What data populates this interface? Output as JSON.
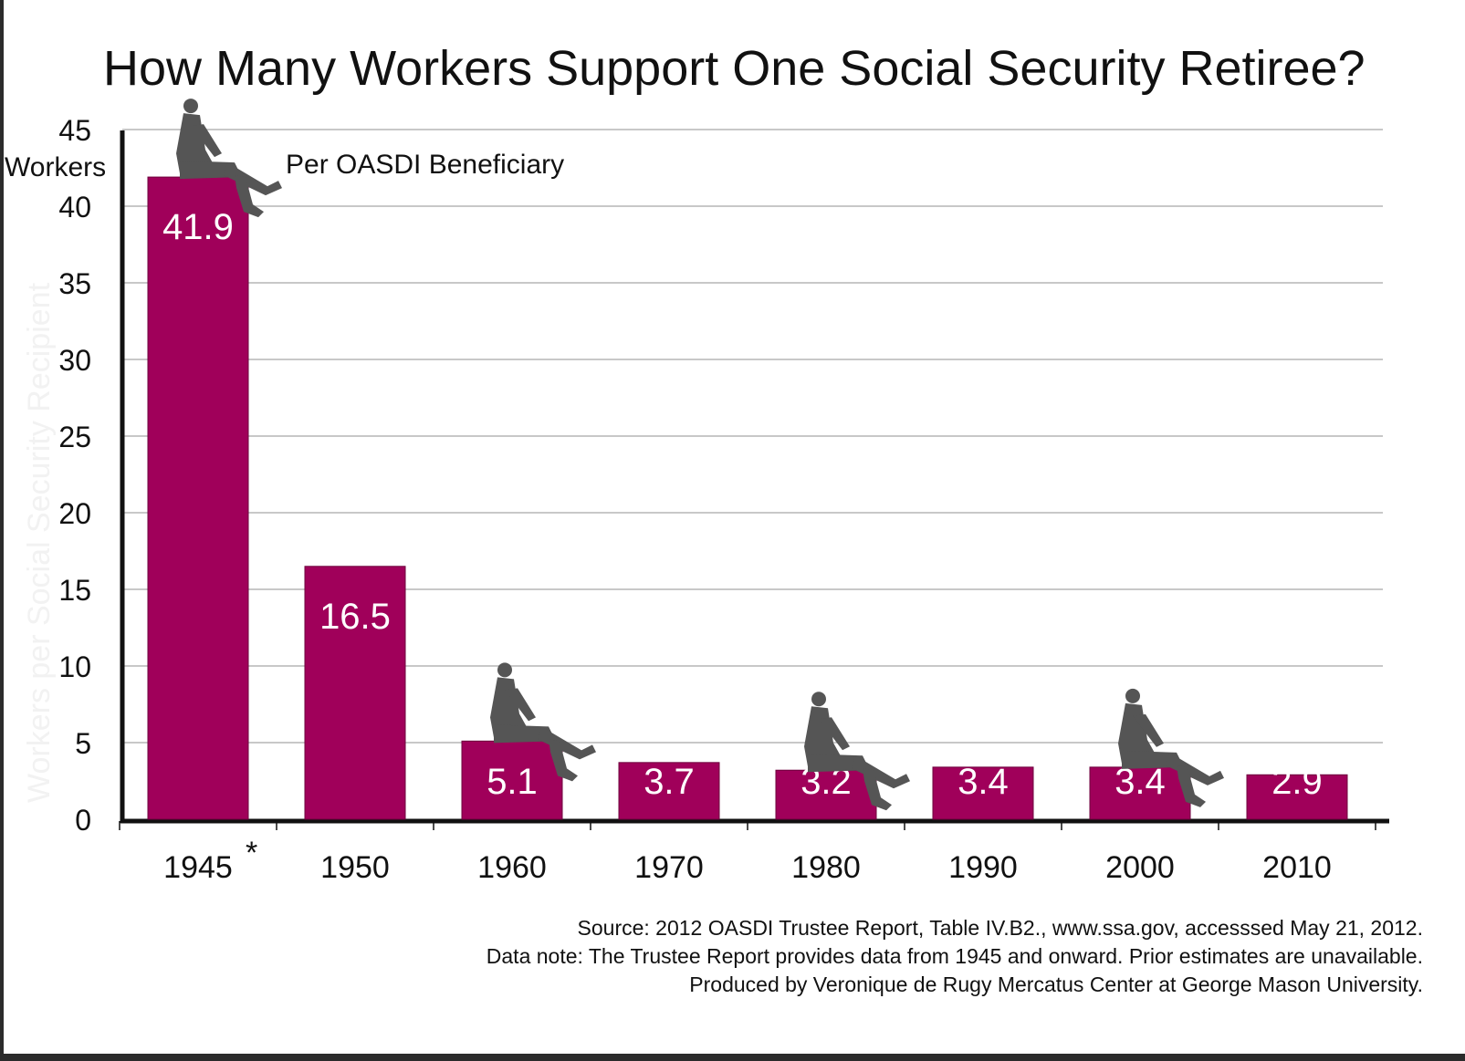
{
  "colors": {
    "bar": "#a0005a",
    "bar_edge": "#6e003d",
    "figure": "#555555",
    "grid": "#b5b5b5",
    "axis": "#111111",
    "label": "#ffffff"
  },
  "icons": [
    "seated-man-icon"
  ],
  "chart_data": {
    "type": "bar",
    "title": "How Many Workers Support One Social Security Retiree?",
    "ylabel": "Workers per Social Security Recipient",
    "yunit": "Workers",
    "annotation": "Per OASDI Beneficiary",
    "categories": [
      "1945",
      "1950",
      "1960",
      "1970",
      "1980",
      "1990",
      "2000",
      "2010"
    ],
    "category_marks": [
      "*",
      "",
      "",
      "",
      "",
      "",
      "",
      ""
    ],
    "values": [
      41.9,
      16.5,
      5.1,
      3.7,
      3.2,
      3.4,
      3.4,
      2.9
    ],
    "value_labels": [
      "41.9",
      "16.5",
      "5.1",
      "3.7",
      "3.2",
      "3.4",
      "3.4",
      "2.9"
    ],
    "ylim": [
      0,
      45
    ],
    "yticks": [
      0,
      5,
      10,
      15,
      20,
      25,
      30,
      35,
      40,
      45
    ],
    "grid": true,
    "figures_on": [
      "1945",
      "1960",
      "1980",
      "2000"
    ]
  },
  "notes": {
    "source": "Source: 2012 OASDI Trustee Report, Table IV.B2., www.ssa.gov, accesssed May 21, 2012.",
    "data_note": "Data note: The Trustee Report provides data from 1945 and onward. Prior estimates are unavailable.",
    "credit": "Produced by Veronique de Rugy Mercatus Center at George Mason University."
  }
}
